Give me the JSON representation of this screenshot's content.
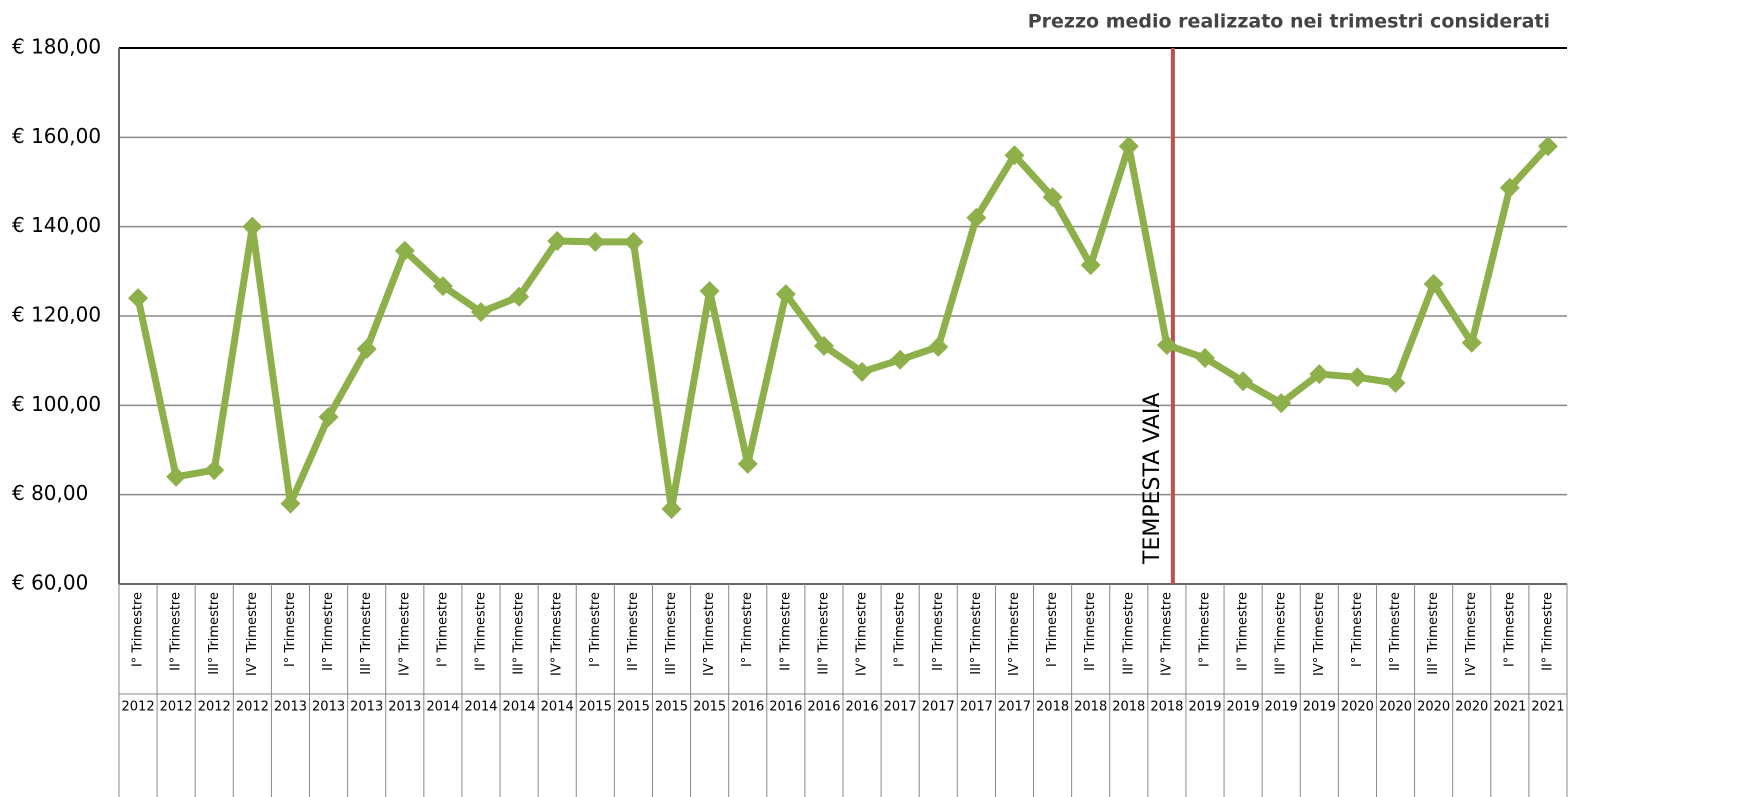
{
  "chart_data": {
    "type": "line",
    "title": "Prezzo medio realizzato nei trimestri considerati",
    "categories": [
      "I° Trimestre",
      "II° Trimestre",
      "III° Trimestre",
      "IV° Trimestre",
      "I° Trimestre",
      "II° Trimestre",
      "III° Trimestre",
      "IV° Trimestre",
      "I° Trimestre",
      "II° Trimestre",
      "III° Trimestre",
      "IV° Trimestre",
      "I° Trimestre",
      "II° Trimestre",
      "III° Trimestre",
      "IV° Trimestre",
      "I° Trimestre",
      "II° Trimestre",
      "III° Trimestre",
      "IV° Trimestre",
      "I° Trimestre",
      "II° Trimestre",
      "III° Trimestre",
      "IV° Trimestre",
      "I° Trimestre",
      "II° Trimestre",
      "III° Trimestre",
      "IV° Trimestre",
      "I° Trimestre",
      "II° Trimestre",
      "III° Trimestre",
      "IV° Trimestre",
      "I° Trimestre",
      "II° Trimestre",
      "III° Trimestre",
      "IV° Trimestre",
      "I° Trimestre",
      "II° Trimestre"
    ],
    "years": [
      "2012",
      "2012",
      "2012",
      "2012",
      "2013",
      "2013",
      "2013",
      "2013",
      "2014",
      "2014",
      "2014",
      "2014",
      "2015",
      "2015",
      "2015",
      "2015",
      "2016",
      "2016",
      "2016",
      "2016",
      "2017",
      "2017",
      "2017",
      "2017",
      "2018",
      "2018",
      "2018",
      "2018",
      "2019",
      "2019",
      "2019",
      "2019",
      "2020",
      "2020",
      "2020",
      "2020",
      "2021",
      "2021"
    ],
    "values": [
      124,
      84,
      85.5,
      140,
      78,
      97.4,
      112.6,
      134.6,
      126.7,
      120.9,
      124.3,
      136.8,
      136.6,
      136.6,
      76.8,
      125.6,
      86.9,
      124.9,
      113.3,
      107.5,
      110.2,
      113.1,
      142,
      156,
      146.6,
      131.4,
      158,
      113.5,
      110.6,
      105.4,
      100.5,
      107,
      106.3,
      105,
      127.2,
      114,
      148.7,
      158
    ],
    "color": "#8db04b",
    "annotation": "TEMPESTA VAIA",
    "annotation_color": "#c0504d",
    "ylim": [
      60,
      180
    ],
    "yticks": [
      {
        "value": 60,
        "label": "€ 60,00"
      },
      {
        "value": 80,
        "label": "€ 80,00"
      },
      {
        "value": 100,
        "label": "€ 100,00"
      },
      {
        "value": 120,
        "label": "€ 120,00"
      },
      {
        "value": 140,
        "label": "€ 140,00"
      },
      {
        "value": 160,
        "label": "€ 160,00"
      },
      {
        "value": 180,
        "label": "€ 180,00"
      }
    ],
    "grid": true
  }
}
